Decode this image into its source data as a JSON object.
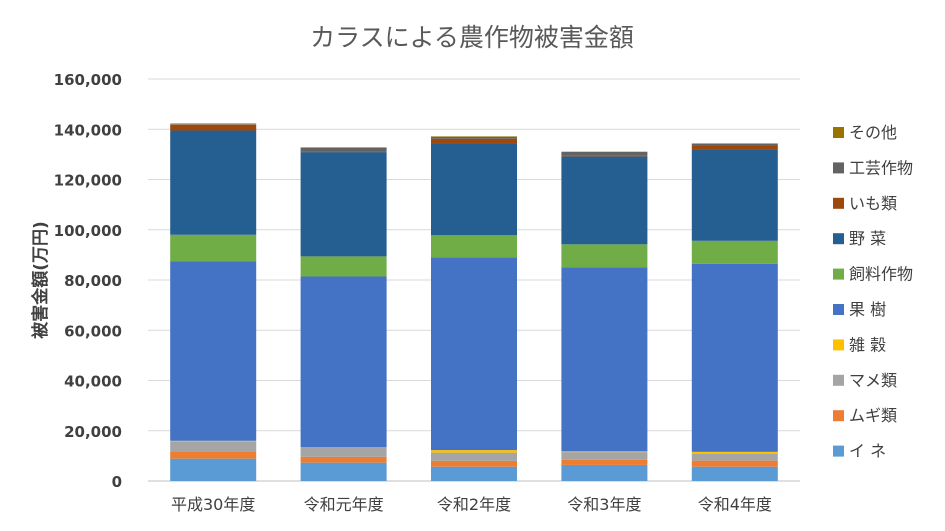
{
  "chart_data": {
    "type": "bar",
    "stacked": true,
    "title": "カラスによる農作物被害金額",
    "xlabel": "",
    "ylabel": "被害金額(万円)",
    "ylim": [
      0,
      160000
    ],
    "yticks": [
      "0",
      "20,000",
      "40,000",
      "60,000",
      "80,000",
      "100,000",
      "120,000",
      "140,000",
      "160,000"
    ],
    "grid": true,
    "legend_position": "right",
    "categories": [
      "平成30年度",
      "令和元年度",
      "令和2年度",
      "令和3年度",
      "令和4年度"
    ],
    "series": [
      {
        "name": "イ ネ",
        "color": "#5b9bd5",
        "values": [
          8900,
          7300,
          5700,
          6400,
          5700
        ]
      },
      {
        "name": "ムギ類",
        "color": "#ed7d31",
        "values": [
          2800,
          2300,
          2300,
          2000,
          2400
        ]
      },
      {
        "name": "マメ類",
        "color": "#a5a5a5",
        "values": [
          4000,
          3700,
          3300,
          3100,
          2800
        ]
      },
      {
        "name": "雑 穀",
        "color": "#ffc000",
        "values": [
          300,
          100,
          1000,
          300,
          700
        ]
      },
      {
        "name": "果 樹",
        "color": "#4472c4",
        "values": [
          71500,
          68000,
          76700,
          73300,
          74800
        ]
      },
      {
        "name": "飼料作物",
        "color": "#70ad47",
        "values": [
          10500,
          8000,
          8800,
          9100,
          9200
        ]
      },
      {
        "name": "野 菜",
        "color": "#255e91",
        "values": [
          41500,
          41500,
          36700,
          35000,
          36500
        ]
      },
      {
        "name": "いも類",
        "color": "#9e480e",
        "values": [
          2300,
          300,
          1700,
          300,
          1600
        ]
      },
      {
        "name": "工芸作物",
        "color": "#636363",
        "values": [
          200,
          1500,
          800,
          1500,
          500
        ]
      },
      {
        "name": "その他",
        "color": "#997300",
        "values": [
          300,
          100,
          200,
          100,
          200
        ]
      }
    ]
  }
}
